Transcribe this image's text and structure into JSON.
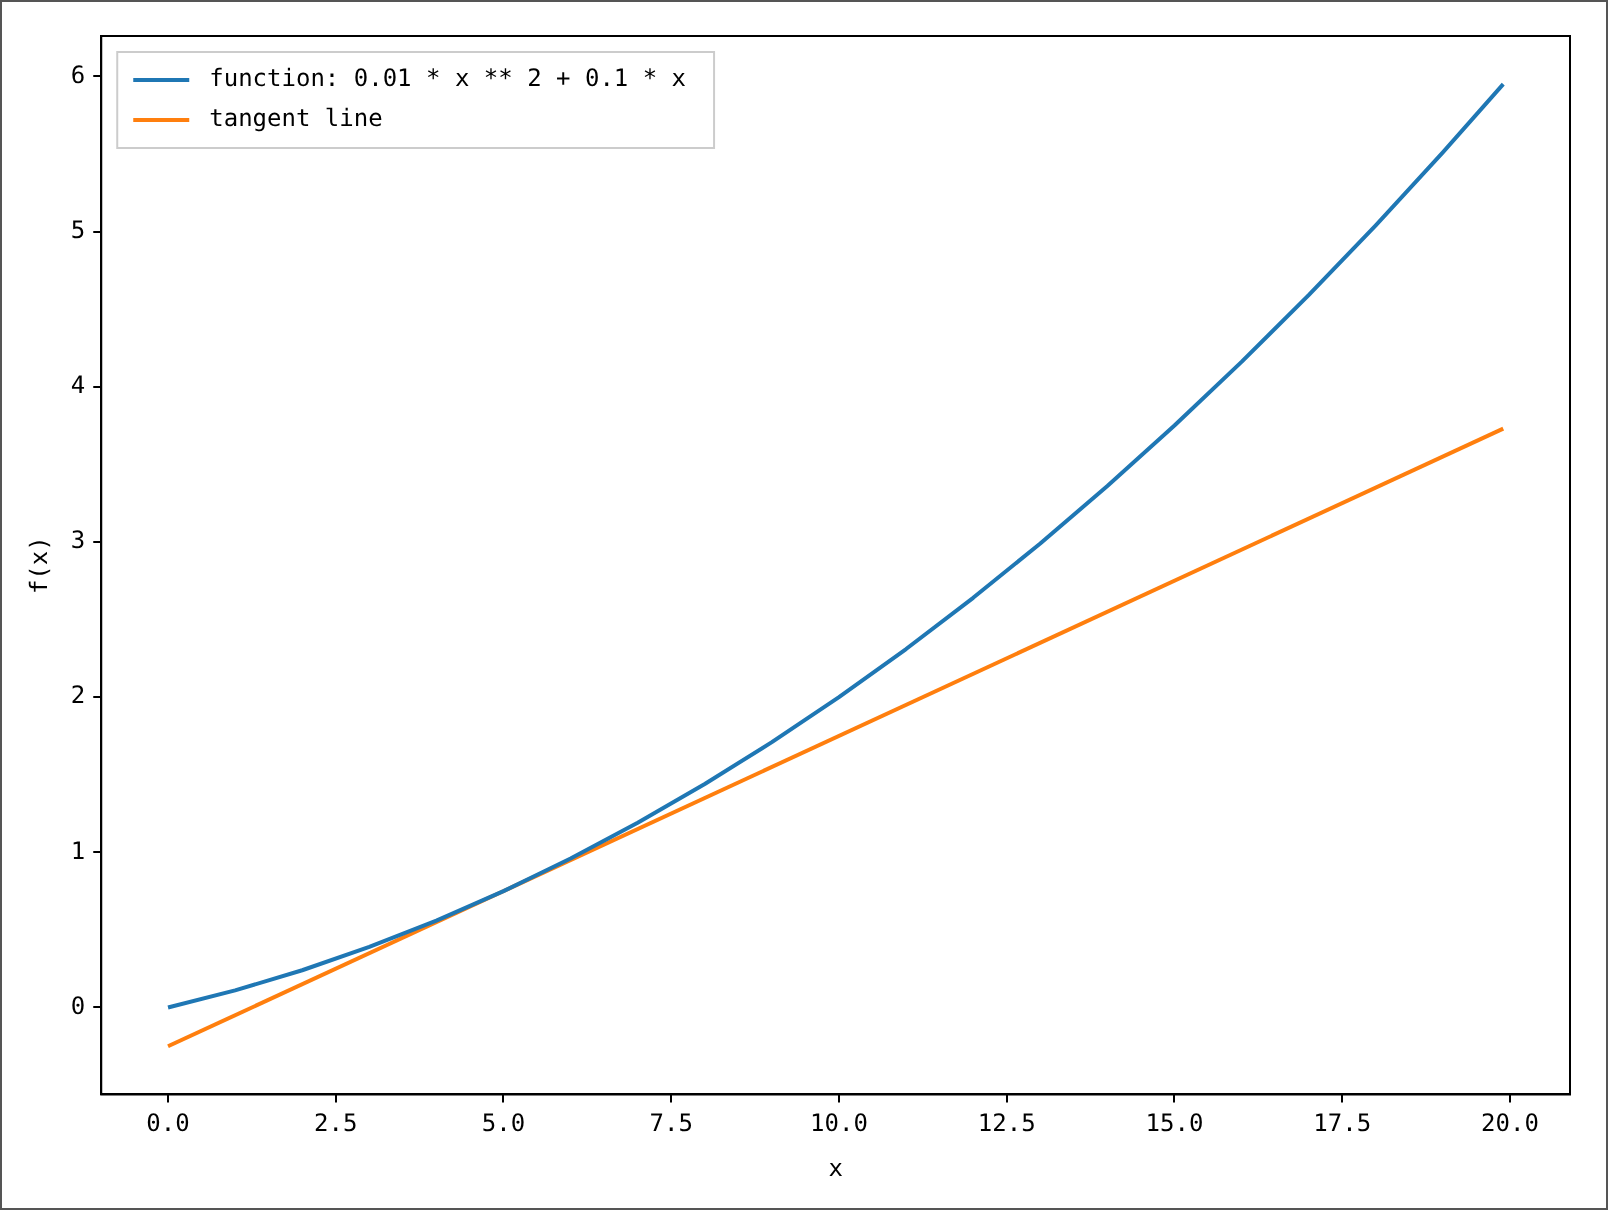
{
  "chart_data": {
    "type": "line",
    "xlabel": "x",
    "ylabel": "f(x)",
    "legend": "top left",
    "xlim": [
      -0.995,
      20.895
    ],
    "ylim": [
      -0.56,
      6.26
    ],
    "xticks": [
      {
        "value": 0,
        "label": "0.0"
      },
      {
        "value": 2.5,
        "label": "2.5"
      },
      {
        "value": 5,
        "label": "5.0"
      },
      {
        "value": 7.5,
        "label": "7.5"
      },
      {
        "value": 10,
        "label": "10.0"
      },
      {
        "value": 12.5,
        "label": "12.5"
      },
      {
        "value": 15,
        "label": "15.0"
      },
      {
        "value": 17.5,
        "label": "17.5"
      },
      {
        "value": 20,
        "label": "20.0"
      }
    ],
    "yticks": [
      0,
      1,
      2,
      3,
      4,
      5,
      6
    ],
    "series": [
      {
        "name": "function: 0.01 * x ** 2 + 0.1 * x",
        "color": "#1f77b4",
        "x": [
          0,
          1,
          2,
          3,
          4,
          5,
          6,
          7,
          8,
          9,
          10,
          11,
          12,
          13,
          14,
          15,
          16,
          17,
          18,
          19,
          19.9
        ],
        "values": [
          0,
          0.11,
          0.24,
          0.39,
          0.56,
          0.75,
          0.96,
          1.19,
          1.44,
          1.71,
          2,
          2.31,
          2.64,
          2.99,
          3.36,
          3.75,
          4.16,
          4.59,
          5.04,
          5.51,
          5.95
        ]
      },
      {
        "name": "tangent line",
        "color": "#ff7f0e",
        "x": [
          0,
          19.9
        ],
        "values": [
          -0.25,
          3.73
        ]
      }
    ]
  }
}
